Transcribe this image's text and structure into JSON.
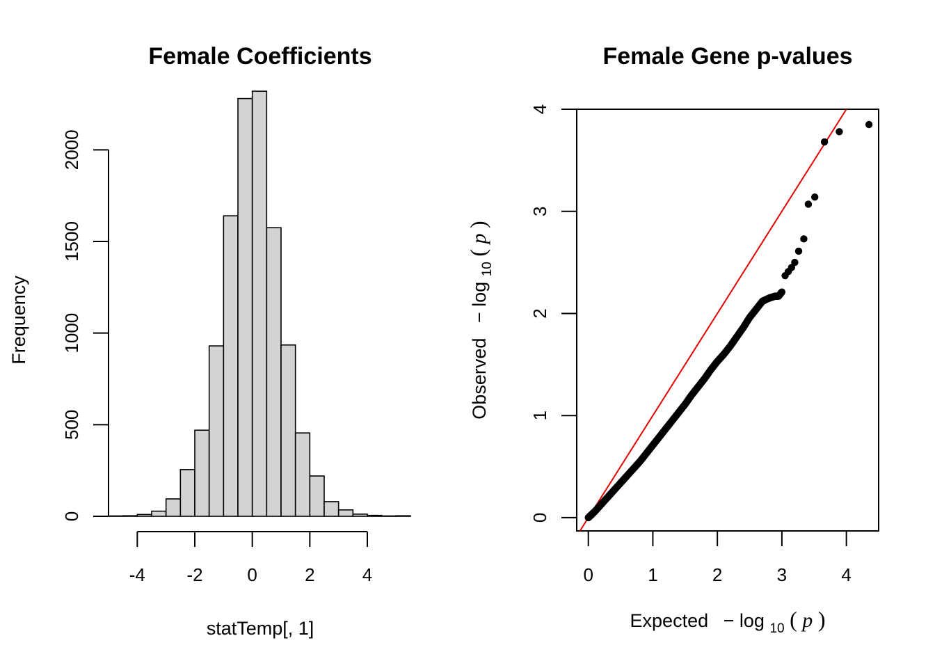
{
  "chart_data": [
    {
      "type": "bar",
      "title": "Female Coefficients",
      "xlabel": "statTemp[, 1]",
      "ylabel": "Frequency",
      "bin_edges": [
        -5,
        -4.5,
        -4,
        -3.5,
        -3,
        -2.5,
        -2,
        -1.5,
        -1,
        -0.5,
        0,
        0.5,
        1,
        1.5,
        2,
        2.5,
        3,
        3.5,
        4,
        4.5,
        5,
        5.5
      ],
      "values": [
        2,
        3,
        10,
        28,
        95,
        255,
        470,
        930,
        1640,
        2280,
        2320,
        1575,
        935,
        455,
        220,
        80,
        35,
        12,
        5,
        2,
        3
      ],
      "xlim": [
        -5,
        5.5
      ],
      "ylim": [
        0,
        2400
      ],
      "x_ticks": [
        -4,
        -2,
        0,
        2,
        4
      ],
      "y_ticks": [
        0,
        500,
        1000,
        1500,
        2000
      ],
      "x_tick_labels": [
        "-4",
        "-2",
        "0",
        "2",
        "4"
      ],
      "y_tick_labels": [
        "0",
        "500",
        "1000",
        "1500",
        "2000"
      ],
      "colors": {
        "bar_fill": "#d3d3d3",
        "bar_stroke": "#000000"
      }
    },
    {
      "type": "scatter",
      "title": "Female Gene p-values",
      "xlabel_prefix": "Expected",
      "ylabel_prefix": "Observed",
      "math_label": {
        "minus": "−",
        "log": "log",
        "base": "10",
        "open": "(",
        "var": "p",
        "close": ")"
      },
      "xlim": [
        -0.18,
        4.5
      ],
      "ylim": [
        -0.13,
        4.0
      ],
      "x_ticks": [
        0,
        1,
        2,
        3,
        4
      ],
      "y_ticks": [
        0,
        1,
        2,
        3,
        4
      ],
      "x_tick_labels": [
        "0",
        "1",
        "2",
        "3",
        "4"
      ],
      "y_tick_labels": [
        "0",
        "1",
        "2",
        "3",
        "4"
      ],
      "reference_line": {
        "intercept": 0,
        "slope": 1,
        "color": "#e00000"
      },
      "points": {
        "x": [
          0,
          0.05,
          0.1,
          0.2,
          0.3,
          0.4,
          0.5,
          0.6,
          0.7,
          0.8,
          0.9,
          1.0,
          1.1,
          1.2,
          1.3,
          1.4,
          1.5,
          1.6,
          1.7,
          1.8,
          1.9,
          2.0,
          2.1,
          2.2,
          2.3,
          2.4,
          2.5,
          2.6,
          2.7,
          2.8,
          2.85,
          2.9,
          2.95,
          3.0,
          3.05,
          3.1,
          3.15,
          3.2,
          3.26,
          3.34,
          3.41,
          3.51,
          3.66,
          3.89,
          4.35
        ],
        "y": [
          0,
          0.03,
          0.06,
          0.13,
          0.2,
          0.27,
          0.34,
          0.41,
          0.48,
          0.55,
          0.63,
          0.71,
          0.79,
          0.87,
          0.95,
          1.03,
          1.11,
          1.2,
          1.28,
          1.36,
          1.45,
          1.53,
          1.6,
          1.68,
          1.77,
          1.86,
          1.96,
          2.04,
          2.12,
          2.15,
          2.16,
          2.17,
          2.17,
          2.21,
          2.37,
          2.41,
          2.45,
          2.5,
          2.61,
          2.73,
          3.07,
          3.14,
          3.68,
          3.78,
          3.85
        ]
      },
      "colors": {
        "point": "#000000",
        "reference_line": "#e00000"
      }
    }
  ]
}
